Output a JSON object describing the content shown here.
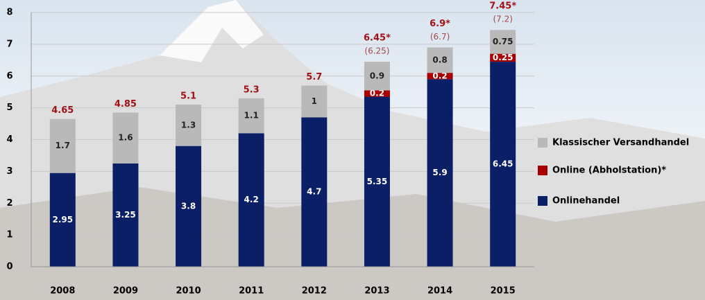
{
  "chart_data": {
    "type": "stacked_bar",
    "categories": [
      "2008",
      "2009",
      "2010",
      "2011",
      "2012",
      "2013",
      "2014",
      "2015"
    ],
    "series": [
      {
        "name": "Onlinehandel",
        "color": "#0b1f66",
        "values": [
          2.95,
          3.25,
          3.8,
          4.2,
          4.7,
          5.35,
          5.9,
          6.45
        ]
      },
      {
        "name": "Online (Abholstation)*",
        "color": "#a80000",
        "values": [
          null,
          null,
          null,
          null,
          null,
          0.2,
          0.2,
          0.25
        ]
      },
      {
        "name": "Klassischer Versandhandel",
        "color": "#b9b9b9",
        "values": [
          1.7,
          1.6,
          1.3,
          1.1,
          1,
          0.9,
          0.8,
          0.75
        ]
      }
    ],
    "totals": {
      "values": [
        4.65,
        4.85,
        5.1,
        5.3,
        5.7,
        6.45,
        6.9,
        7.45
      ],
      "value_labels": [
        "4.65",
        "4.85",
        "5.1",
        "5.3",
        "5.7",
        "6.45*",
        "6.9*",
        "7.45*"
      ]
    },
    "totals_excl_abholstation": {
      "values": [
        null,
        null,
        null,
        null,
        null,
        6.25,
        6.7,
        7.2
      ],
      "value_labels": [
        null,
        null,
        null,
        null,
        null,
        "(6.25)",
        "(6.7)",
        "(7.2)"
      ]
    },
    "ylim": [
      0,
      8
    ],
    "yticks": [
      0,
      1,
      2,
      3,
      4,
      5,
      6,
      7,
      8
    ],
    "grid": true,
    "legend": "right"
  }
}
